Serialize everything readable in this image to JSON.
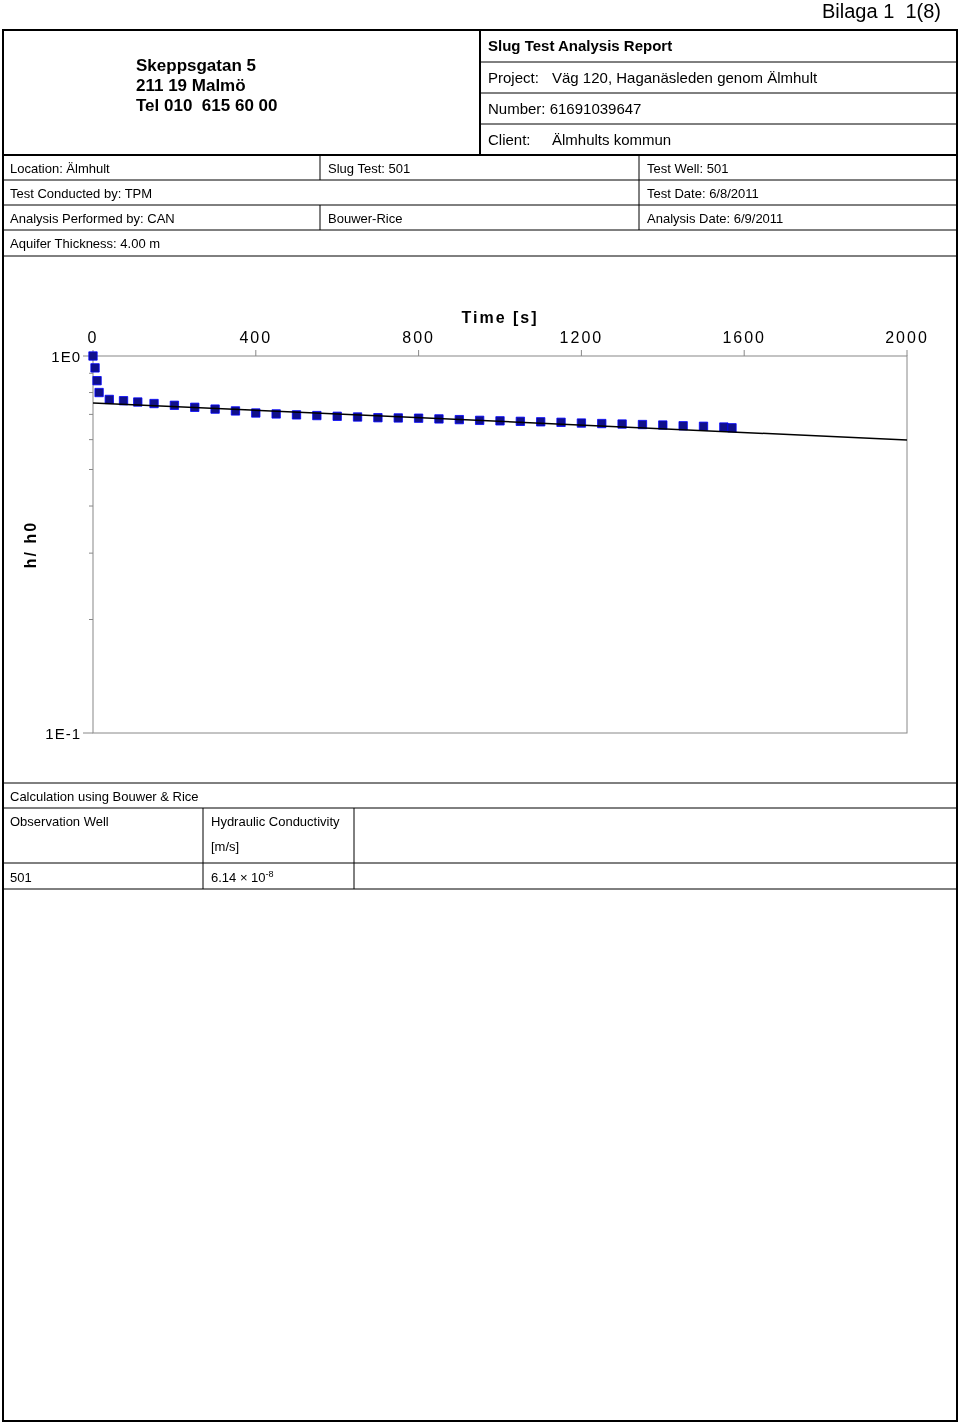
{
  "chart_data": {
    "type": "scatter",
    "title": "Slug Test Analysis Report",
    "xlabel": "Time [s]",
    "ylabel": "h/ h0",
    "log": "y",
    "grid": false,
    "xlim": [
      0,
      2000
    ],
    "xticks": [
      0,
      400,
      800,
      1200,
      1600,
      2000
    ],
    "ylim": [
      0.1,
      1
    ],
    "yticks": [
      {
        "value": 1,
        "label": "1E0"
      },
      {
        "value": 0.9,
        "label": null
      },
      {
        "value": 0.8,
        "label": null
      },
      {
        "value": 0.7,
        "label": null
      },
      {
        "value": 0.6,
        "label": null
      },
      {
        "value": 0.5,
        "label": null
      },
      {
        "value": 0.4,
        "label": null
      },
      {
        "value": 0.3,
        "label": null
      },
      {
        "value": 0.2,
        "label": null
      },
      {
        "value": 0.1,
        "label": "1E-1"
      }
    ],
    "series": [
      {
        "color": "#10108a",
        "marker": "square",
        "x": [
          0,
          5,
          10,
          15,
          40,
          75,
          110,
          150,
          200,
          250,
          300,
          350,
          400,
          450,
          500,
          550,
          600,
          650,
          700,
          750,
          800,
          850,
          900,
          950,
          1000,
          1050,
          1100,
          1150,
          1200,
          1250,
          1300,
          1350,
          1400,
          1450,
          1500,
          1550,
          1570
        ],
        "values": [
          1.0,
          0.93,
          0.86,
          0.8,
          0.767,
          0.761,
          0.755,
          0.748,
          0.74,
          0.731,
          0.723,
          0.715,
          0.706,
          0.702,
          0.698,
          0.695,
          0.692,
          0.689,
          0.686,
          0.685,
          0.684,
          0.681,
          0.678,
          0.675,
          0.673,
          0.671,
          0.669,
          0.667,
          0.664,
          0.662,
          0.66,
          0.658,
          0.656,
          0.653,
          0.651,
          0.648,
          0.645
        ]
      },
      {
        "type": "line",
        "color": "#000000",
        "x": [
          0,
          2000
        ],
        "values": [
          0.751,
          0.599
        ]
      }
    ],
    "annotations": [
      "Bilaga 1  1(8)",
      "Skeppsgatan 5",
      "211 19 Malmö",
      "Tel 010  615 60 00",
      "Project:",
      "Väg 120, Haganäsleden genom Älmhult",
      "Number: 61691039647",
      "Client:",
      "Älmhults kommun",
      "Location: Älmhult",
      "Slug Test: 501",
      "Test Well: 501",
      "Test Conducted by: TPM",
      "Test Date: 6/8/2011",
      "Analysis Performed by: CAN",
      "Bouwer-Rice",
      "Analysis Date: 6/9/2011",
      "Aquifer Thickness: 4.00 m",
      "Calculation using Bouwer & Rice",
      "Observation Well",
      "Hydraulic Conductivity",
      "[m/s]",
      "501",
      "6.14 × 10$^{-8}$"
    ]
  }
}
